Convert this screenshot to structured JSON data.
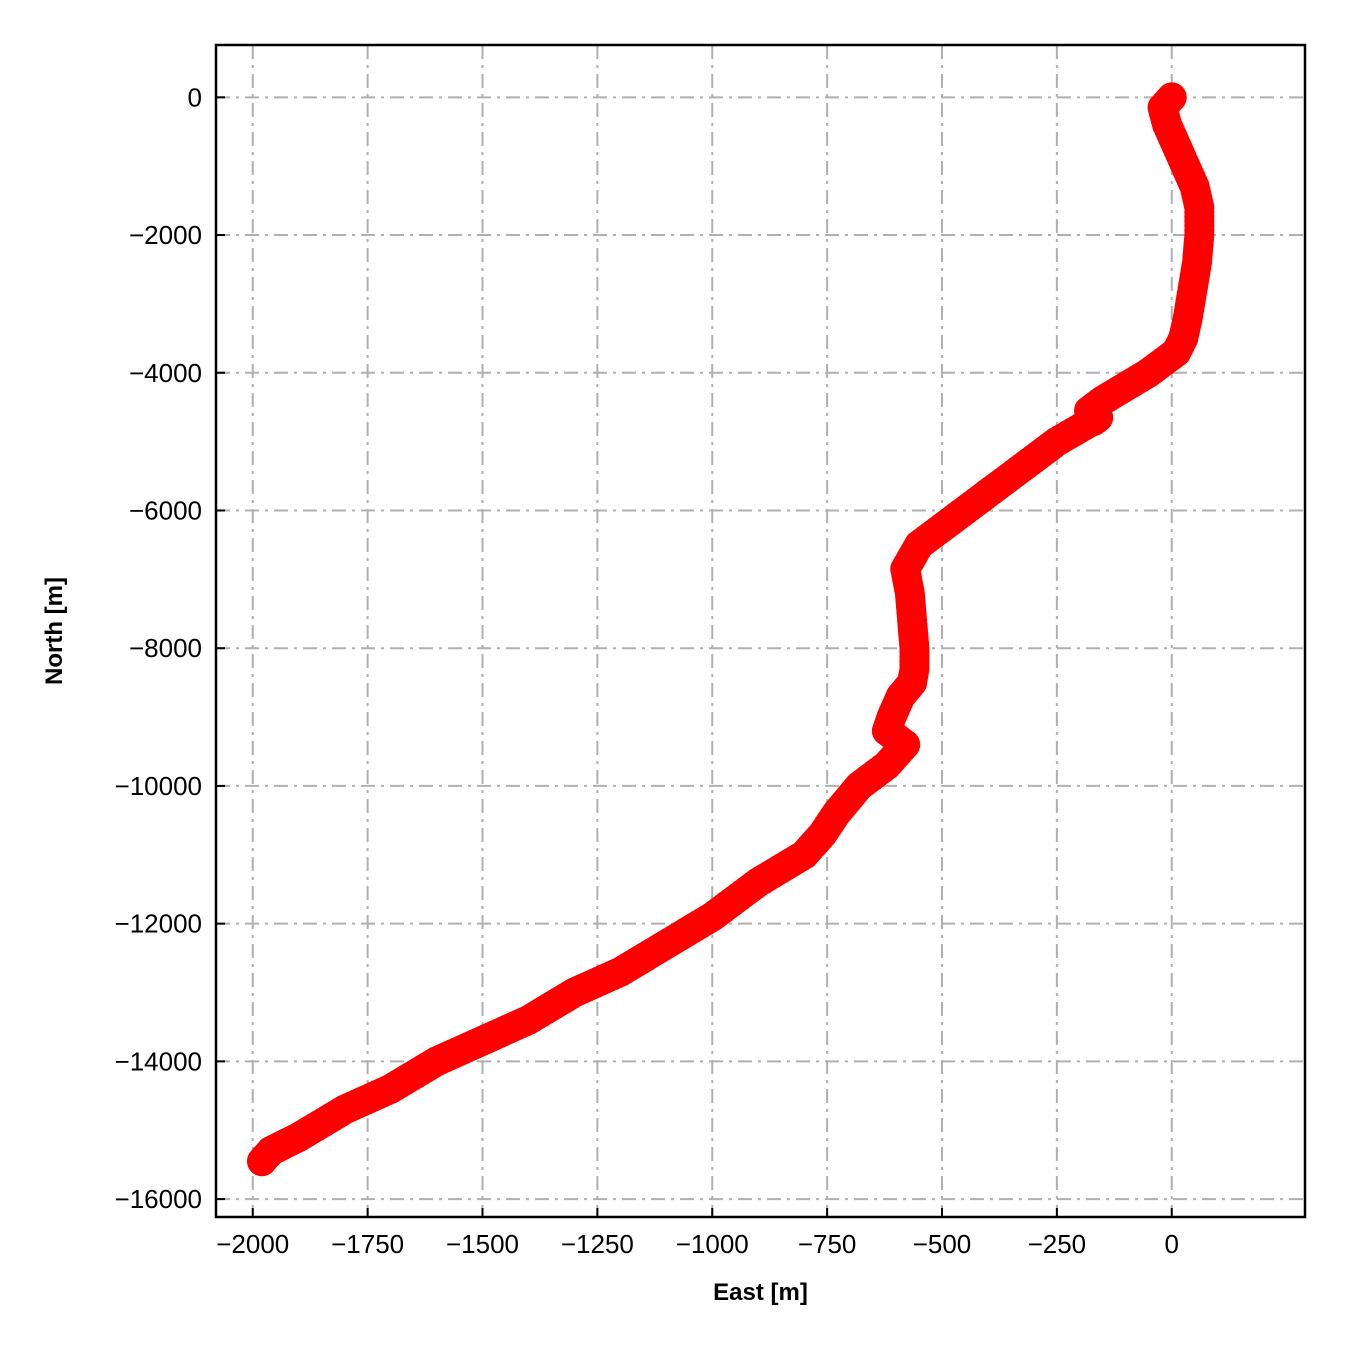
{
  "chart_data": {
    "type": "scatter",
    "title": "",
    "xlabel": "East [m]",
    "ylabel": "North [m]",
    "xlim": [
      -2080,
      290
    ],
    "ylim": [
      -16260,
      760
    ],
    "grid": true,
    "grid_style": "dash-dot",
    "marker_color": "#ff0000",
    "x_ticks": [
      {
        "value": -2000,
        "label": "−2000"
      },
      {
        "value": -1750,
        "label": "−1750"
      },
      {
        "value": -1500,
        "label": "−1500"
      },
      {
        "value": -1250,
        "label": "−1250"
      },
      {
        "value": -1000,
        "label": "−1000"
      },
      {
        "value": -750,
        "label": "−750"
      },
      {
        "value": -500,
        "label": "−500"
      },
      {
        "value": -250,
        "label": "−250"
      },
      {
        "value": 0,
        "label": "0"
      }
    ],
    "y_ticks": [
      {
        "value": 0,
        "label": "0"
      },
      {
        "value": -2000,
        "label": "−2000"
      },
      {
        "value": -4000,
        "label": "−4000"
      },
      {
        "value": -6000,
        "label": "−6000"
      },
      {
        "value": -8000,
        "label": "−8000"
      },
      {
        "value": -10000,
        "label": "−10000"
      },
      {
        "value": -12000,
        "label": "−12000"
      },
      {
        "value": -14000,
        "label": "−14000"
      },
      {
        "value": -16000,
        "label": "−16000"
      }
    ],
    "series": [
      {
        "x": [
          0,
          -20,
          -10,
          10,
          30,
          50,
          60,
          60,
          55,
          45,
          35,
          25,
          10,
          -10,
          -50,
          -100,
          -150,
          -180,
          -170,
          -160,
          -250,
          -350,
          -450,
          -550,
          -580,
          -570,
          -565,
          -560,
          -560,
          -565,
          -590,
          -610,
          -620,
          -600,
          -580,
          -620,
          -680,
          -730,
          -760,
          -800,
          -900,
          -1000,
          -1100,
          -1200,
          -1300,
          -1400,
          -1500,
          -1600,
          -1700,
          -1800,
          -1900,
          -1960,
          -1980
        ],
        "y": [
          0,
          -150,
          -400,
          -700,
          -1000,
          -1300,
          -1600,
          -2000,
          -2400,
          -2800,
          -3200,
          -3500,
          -3700,
          -3800,
          -4000,
          -4200,
          -4400,
          -4550,
          -4700,
          -4650,
          -5000,
          -5500,
          -6000,
          -6500,
          -6850,
          -7200,
          -7600,
          -8000,
          -8300,
          -8500,
          -8700,
          -9000,
          -9200,
          -9300,
          -9400,
          -9700,
          -10000,
          -10400,
          -10700,
          -11000,
          -11400,
          -11900,
          -12300,
          -12700,
          -13000,
          -13400,
          -13700,
          -14000,
          -14400,
          -14700,
          -15100,
          -15300,
          -15450
        ]
      }
    ]
  }
}
